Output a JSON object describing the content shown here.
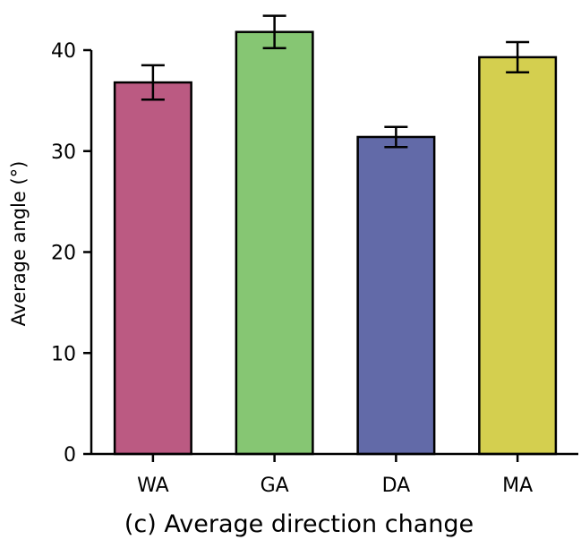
{
  "chart_data": {
    "type": "bar",
    "categories": [
      "WA",
      "GA",
      "DA",
      "MA"
    ],
    "values": [
      36.8,
      41.8,
      31.4,
      39.3
    ],
    "error": [
      1.7,
      1.6,
      1.0,
      1.5
    ],
    "colors": [
      "#bb5a82",
      "#86c673",
      "#626aa8",
      "#d4cf4f"
    ],
    "xlabel": "",
    "ylabel": "Average angle (°)",
    "ylim": [
      0,
      40
    ],
    "yticks": [
      0,
      10,
      20,
      30,
      40
    ],
    "caption": "(c)  Average direction change",
    "grid": false,
    "legend": "none"
  }
}
